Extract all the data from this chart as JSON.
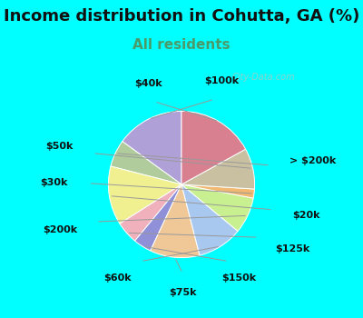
{
  "title": "Income distribution in Cohutta, GA (%)",
  "subtitle": "All residents",
  "bg_cyan": "#00FFFF",
  "bg_chart": "#e0f0e8",
  "labels": [
    "$100k",
    "> $200k",
    "$20k",
    "$125k",
    "$150k",
    "$75k",
    "$60k",
    "$200k",
    "$30k",
    "$50k",
    "$40k"
  ],
  "values": [
    15,
    6,
    13,
    5,
    4,
    11,
    10,
    8,
    2,
    9,
    17
  ],
  "colors": [
    "#b0a0d8",
    "#b0cc9c",
    "#f0f090",
    "#f0b0bc",
    "#9090d8",
    "#f0c898",
    "#a8c8f0",
    "#c8f090",
    "#f0b870",
    "#c8c0a0",
    "#d88090"
  ],
  "startangle": 90,
  "title_fontsize": 13,
  "subtitle_fontsize": 11,
  "label_fontsize": 8,
  "watermark": "City-Data.com"
}
